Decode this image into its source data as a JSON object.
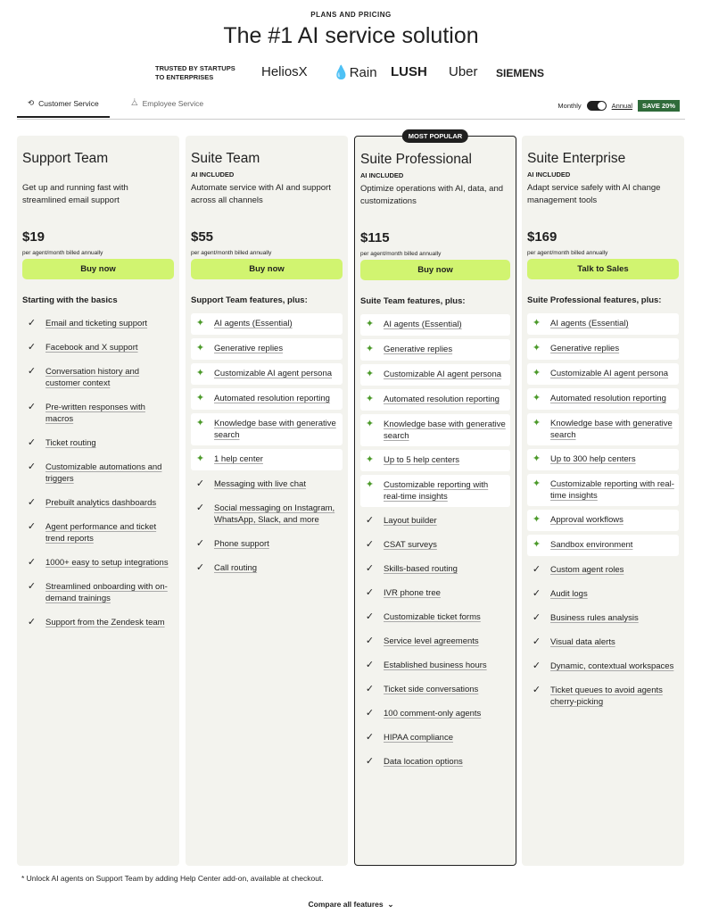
{
  "header": {
    "eyebrow": "PLANS AND PRICING",
    "title": "The #1 AI service solution",
    "trusted": "TRUSTED BY STARTUPS TO ENTERPRISES",
    "logos": [
      "HeliosX",
      "Rain",
      "LUSH",
      "Uber",
      "SIEMENS"
    ]
  },
  "tabs": [
    {
      "label": "Customer Service",
      "icon": "customer-service-icon",
      "active": true
    },
    {
      "label": "Employee Service",
      "icon": "employee-service-icon",
      "active": false
    }
  ],
  "billing": {
    "monthly": "Monthly",
    "annual": "Annual",
    "annual_selected": true,
    "save": "SAVE 20%"
  },
  "colors": {
    "button": "#d1f470",
    "save_badge": "#2f6b3a",
    "card_bg": "#f3f3ee",
    "sparkle": "#4c9a2a"
  },
  "plans": [
    {
      "name": "Support Team",
      "ai": "",
      "desc": "Get up and running fast with streamlined email support",
      "price": "$19",
      "per": "per agent/month billed annually",
      "button": "Buy now",
      "features_heading": "Starting with the basics",
      "features": [
        {
          "t": "Email and ticketing support"
        },
        {
          "t": "Facebook and X support"
        },
        {
          "t": "Conversation history and customer context"
        },
        {
          "t": "Pre-written responses with macros"
        },
        {
          "t": "Ticket routing"
        },
        {
          "t": "Customizable automations and triggers"
        },
        {
          "t": "Prebuilt analytics dashboards"
        },
        {
          "t": "Agent performance and ticket trend reports"
        },
        {
          "t": "1000+ easy to setup integrations"
        },
        {
          "t": "Streamlined onboarding with on-demand trainings"
        },
        {
          "t": "Support from the Zendesk team"
        }
      ]
    },
    {
      "name": "Suite Team",
      "ai": "AI INCLUDED",
      "desc": "Automate service with AI and support across all channels",
      "price": "$55",
      "per": "per agent/month billed annually",
      "button": "Buy now",
      "features_heading": "Support Team features, plus:",
      "features": [
        {
          "t": "AI agents (Essential)",
          "ai": true
        },
        {
          "t": "Generative replies",
          "ai": true
        },
        {
          "t": "Customizable AI agent persona",
          "ai": true
        },
        {
          "t": "Automated resolution reporting",
          "ai": true
        },
        {
          "t": "Knowledge base with generative search",
          "ai": true
        },
        {
          "t": "1 help center",
          "ai": true
        },
        {
          "t": "Messaging with live chat"
        },
        {
          "t": "Social messaging on Instagram, WhatsApp, Slack, and more"
        },
        {
          "t": "Phone support"
        },
        {
          "t": "Call routing"
        }
      ]
    },
    {
      "name": "Suite Professional",
      "badge": "MOST POPULAR",
      "ai": "AI INCLUDED",
      "desc": "Optimize operations with AI, data, and customizations",
      "price": "$115",
      "per": "per agent/month billed annually",
      "button": "Buy now",
      "features_heading": "Suite Team features, plus:",
      "features": [
        {
          "t": "AI agents (Essential)",
          "ai": true
        },
        {
          "t": "Generative replies",
          "ai": true
        },
        {
          "t": "Customizable AI agent persona",
          "ai": true
        },
        {
          "t": "Automated resolution reporting",
          "ai": true
        },
        {
          "t": "Knowledge base with generative search",
          "ai": true
        },
        {
          "t": "Up to 5 help centers",
          "ai": true
        },
        {
          "t": "Customizable reporting with real-time insights",
          "ai": true
        },
        {
          "t": "Layout builder"
        },
        {
          "t": "CSAT surveys"
        },
        {
          "t": "Skills-based routing"
        },
        {
          "t": "IVR phone tree"
        },
        {
          "t": "Customizable ticket forms"
        },
        {
          "t": "Service level agreements"
        },
        {
          "t": "Established business hours"
        },
        {
          "t": "Ticket side conversations"
        },
        {
          "t": "100 comment-only agents"
        },
        {
          "t": "HIPAA compliance"
        },
        {
          "t": "Data location options"
        }
      ]
    },
    {
      "name": "Suite Enterprise",
      "ai": "AI INCLUDED",
      "desc": "Adapt service safely with AI change management tools",
      "price": "$169",
      "per": "per agent/month billed annually",
      "button": "Talk to Sales",
      "features_heading": "Suite Professional features, plus:",
      "features": [
        {
          "t": "AI agents (Essential)",
          "ai": true
        },
        {
          "t": "Generative replies",
          "ai": true
        },
        {
          "t": "Customizable AI agent persona",
          "ai": true
        },
        {
          "t": "Automated resolution reporting",
          "ai": true
        },
        {
          "t": "Knowledge base with generative search",
          "ai": true
        },
        {
          "t": "Up to 300 help centers",
          "ai": true
        },
        {
          "t": "Customizable reporting with real-time insights",
          "ai": true
        },
        {
          "t": "Approval workflows",
          "ai": true
        },
        {
          "t": "Sandbox environment",
          "ai": true
        },
        {
          "t": "Custom agent roles"
        },
        {
          "t": "Audit logs"
        },
        {
          "t": "Business rules analysis"
        },
        {
          "t": "Visual data alerts"
        },
        {
          "t": "Dynamic, contextual workspaces"
        },
        {
          "t": "Ticket queues to avoid agents cherry-picking"
        }
      ]
    }
  ],
  "footnote": "* Unlock AI agents on Support Team by adding Help Center add-on, available at checkout.",
  "compare": "Compare all features"
}
